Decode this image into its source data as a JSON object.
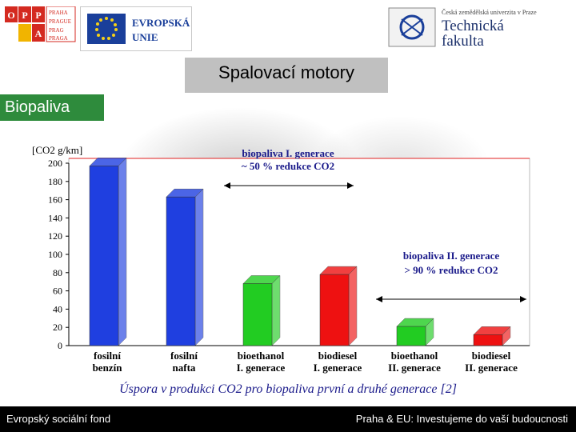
{
  "header": {
    "opp_logo": [
      "O",
      "P",
      "P",
      "A"
    ],
    "praha_grid": [
      "PRAHA",
      "PRAGUE",
      "PRAG",
      "PRAGA"
    ],
    "eu_text_1": "EVROPSKÁ",
    "eu_text_2": "UNIE",
    "university": "Česká zemědělská univerzita v Praze",
    "faculty_1": "Technická",
    "faculty_2": "fakulta"
  },
  "title": "Spalovací motory",
  "section": "Biopaliva",
  "chart_data": {
    "type": "bar",
    "ylabel": "[CO2 g/km]",
    "ylim": [
      0,
      200
    ],
    "yticks": [
      0,
      20,
      40,
      60,
      80,
      100,
      120,
      140,
      160,
      180,
      200
    ],
    "categories": [
      [
        "fosilní",
        "benzín"
      ],
      [
        "fosilní",
        "nafta"
      ],
      [
        "bioethanol",
        "I. generace"
      ],
      [
        "biodiesel",
        "I. generace"
      ],
      [
        "bioethanol",
        "II. generace"
      ],
      [
        "biodiesel",
        "II. generace"
      ]
    ],
    "values": [
      197,
      163,
      68,
      78,
      21,
      12
    ],
    "colors": [
      "#1f3fe0",
      "#1f3fe0",
      "#22cc22",
      "#ee1111",
      "#22cc22",
      "#ee1111"
    ],
    "annotations": [
      {
        "lines": [
          "biopaliva I. generace",
          "~ 50 % redukce CO2"
        ]
      },
      {
        "lines": [
          "biopaliva II. generace",
          "> 90 % redukce CO2"
        ]
      }
    ]
  },
  "caption": "Úspora v produkci CO2 pro biopaliva první a druhé generace [2]",
  "footer": {
    "left": "Evropský sociální fond",
    "right": "Praha & EU: Investujeme do vaší budoucnosti"
  }
}
